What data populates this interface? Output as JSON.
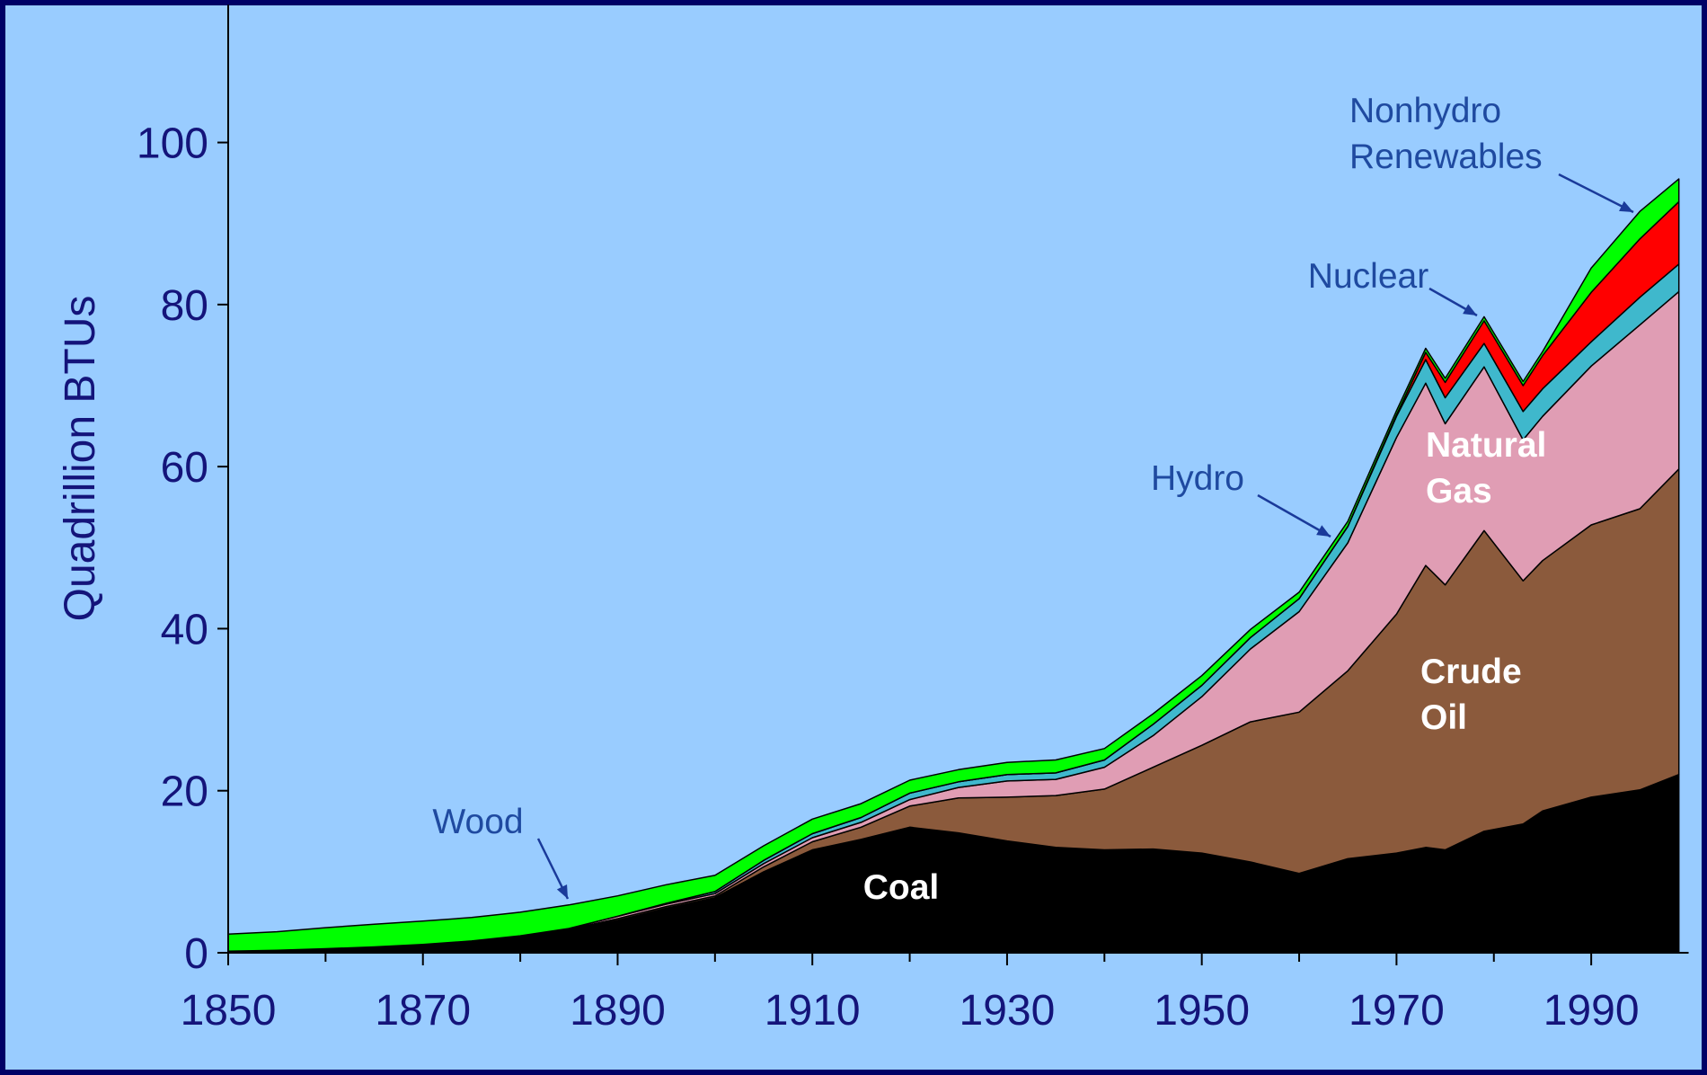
{
  "chart_data": {
    "type": "stacked-area",
    "y_label": "Quadrillion BTUs",
    "x": [
      1850,
      1855,
      1860,
      1865,
      1870,
      1875,
      1880,
      1885,
      1890,
      1895,
      1900,
      1905,
      1910,
      1915,
      1920,
      1925,
      1930,
      1935,
      1940,
      1945,
      1950,
      1955,
      1960,
      1965,
      1970,
      1973,
      1975,
      1979,
      1983,
      1985,
      1990,
      1995,
      1999
    ],
    "series": [
      {
        "name": "Coal",
        "color": "#000000",
        "values": [
          0.2,
          0.3,
          0.5,
          0.7,
          1.0,
          1.4,
          2.0,
          2.8,
          4.0,
          5.5,
          6.8,
          10.0,
          12.7,
          14.0,
          15.5,
          14.8,
          13.8,
          13.0,
          12.7,
          12.8,
          12.3,
          11.2,
          9.8,
          11.6,
          12.3,
          13.0,
          12.7,
          15.0,
          15.9,
          17.5,
          19.2,
          20.1,
          22.0
        ]
      },
      {
        "name": "Crude Oil",
        "color": "#8b5a3c",
        "values": [
          0,
          0,
          0,
          0.02,
          0.02,
          0.05,
          0.1,
          0.1,
          0.2,
          0.2,
          0.2,
          0.6,
          1.0,
          1.5,
          2.6,
          4.3,
          5.4,
          6.4,
          7.5,
          10.1,
          13.3,
          17.3,
          19.9,
          23.2,
          29.5,
          34.8,
          32.7,
          37.1,
          30.0,
          30.9,
          33.6,
          34.7,
          37.7
        ]
      },
      {
        "name": "Natural Gas",
        "color": "#e09db4",
        "values": [
          0,
          0,
          0,
          0,
          0,
          0,
          0,
          0.1,
          0.3,
          0.3,
          0.3,
          0.4,
          0.5,
          0.6,
          0.8,
          1.3,
          2.0,
          2.0,
          2.7,
          3.9,
          6.0,
          9.0,
          12.4,
          15.8,
          21.8,
          22.5,
          19.9,
          20.2,
          17.4,
          17.8,
          19.6,
          22.7,
          21.9
        ]
      },
      {
        "name": "Hydro",
        "color": "#3fb8cc",
        "values": [
          0,
          0,
          0,
          0,
          0,
          0,
          0,
          0,
          0.02,
          0.1,
          0.25,
          0.4,
          0.5,
          0.6,
          0.8,
          0.7,
          0.8,
          0.8,
          0.9,
          1.4,
          1.4,
          1.4,
          1.6,
          2.0,
          2.6,
          2.9,
          3.2,
          2.9,
          3.5,
          3.4,
          3.0,
          3.4,
          3.4
        ]
      },
      {
        "name": "Nuclear",
        "color": "#ff0000",
        "values": [
          0,
          0,
          0,
          0,
          0,
          0,
          0,
          0,
          0,
          0,
          0,
          0,
          0,
          0,
          0,
          0,
          0,
          0,
          0,
          0,
          0,
          0,
          0,
          0.04,
          0.2,
          0.9,
          1.9,
          2.8,
          3.2,
          4.1,
          6.1,
          7.2,
          7.7
        ]
      },
      {
        "name": "Wood",
        "color": "#00ff00",
        "values": [
          2.1,
          2.3,
          2.6,
          2.8,
          2.9,
          2.9,
          2.9,
          2.9,
          2.5,
          2.3,
          2.0,
          1.8,
          1.8,
          1.7,
          1.6,
          1.5,
          1.5,
          1.6,
          1.4,
          1.3,
          1.2,
          1.0,
          0.8,
          0.6,
          0.5,
          0.5,
          0.5,
          0.5,
          0.5,
          0.5,
          3.0,
          3.4,
          2.8
        ]
      }
    ],
    "annotations": [
      "Nonhydro Renewables"
    ],
    "xlim": [
      1850,
      2000
    ],
    "xticks": [
      1850,
      1870,
      1890,
      1910,
      1930,
      1950,
      1970,
      1990
    ],
    "ylim": [
      0,
      117
    ],
    "yticks": [
      0,
      20,
      40,
      60,
      80,
      100
    ]
  }
}
